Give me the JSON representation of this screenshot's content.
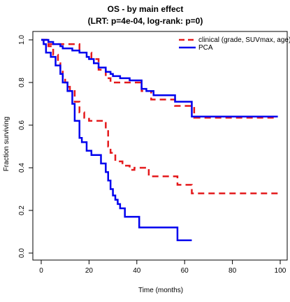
{
  "chart_data": {
    "type": "line",
    "step": true,
    "title": "OS - by main effect",
    "subtitle": "(LRT: p=4e-04,  log-rank: p=0)",
    "xlabel": "Time (months)",
    "ylabel": "Fraction surviving",
    "xlim": [
      0,
      100
    ],
    "ylim": [
      0,
      1
    ],
    "xticks": [
      0,
      20,
      40,
      60,
      80,
      100
    ],
    "yticks": [
      0.0,
      0.2,
      0.4,
      0.6,
      0.8,
      1.0
    ],
    "xtick_labels": [
      "0",
      "20",
      "40",
      "60",
      "80",
      "100"
    ],
    "ytick_labels": [
      "0.0",
      "0.2",
      "0.4",
      "0.6",
      "0.8",
      "1.0"
    ],
    "legend": {
      "placement": "top-right"
    },
    "series": [
      {
        "name": "clinical (grade, SUVmax, age)",
        "group": "high",
        "color": "#e41a1c",
        "style": "dashed",
        "x": [
          0,
          3,
          16,
          21,
          24,
          27,
          29,
          42,
          46,
          56,
          64,
          99
        ],
        "y": [
          1.0,
          0.98,
          0.94,
          0.91,
          0.86,
          0.82,
          0.8,
          0.76,
          0.72,
          0.69,
          0.635,
          0.635
        ]
      },
      {
        "name": "clinical (grade, SUVmax, age)",
        "group": "low",
        "color": "#e41a1c",
        "style": "dashed",
        "x": [
          0,
          3,
          5,
          7,
          8,
          9,
          10,
          11,
          12,
          14,
          16,
          18,
          20,
          27,
          28,
          29,
          31,
          34,
          37,
          39,
          45,
          57,
          63,
          99
        ],
        "y": [
          1.0,
          0.97,
          0.93,
          0.89,
          0.86,
          0.83,
          0.8,
          0.78,
          0.76,
          0.71,
          0.66,
          0.635,
          0.62,
          0.58,
          0.5,
          0.47,
          0.43,
          0.41,
          0.39,
          0.4,
          0.36,
          0.32,
          0.28,
          0.28
        ]
      },
      {
        "name": "PCA",
        "group": "high",
        "color": "#0000ee",
        "style": "solid",
        "x": [
          0,
          3,
          5,
          8,
          9,
          13,
          16,
          19,
          20,
          22,
          24,
          27,
          29,
          30,
          33,
          34,
          37,
          42,
          44,
          47,
          56,
          63,
          99
        ],
        "y": [
          1.0,
          0.99,
          0.98,
          0.97,
          0.96,
          0.95,
          0.94,
          0.92,
          0.91,
          0.89,
          0.87,
          0.85,
          0.84,
          0.83,
          0.82,
          0.82,
          0.81,
          0.77,
          0.76,
          0.74,
          0.71,
          0.64,
          0.64
        ]
      },
      {
        "name": "PCA",
        "group": "low",
        "color": "#0000ee",
        "style": "solid",
        "x": [
          0,
          1,
          2,
          4,
          6,
          8,
          9,
          11,
          13,
          14,
          16,
          17,
          19,
          21,
          25,
          27,
          28,
          29,
          30,
          31,
          32,
          33,
          35,
          41,
          48,
          57,
          63
        ],
        "y": [
          1.0,
          0.98,
          0.94,
          0.92,
          0.88,
          0.84,
          0.8,
          0.76,
          0.7,
          0.62,
          0.54,
          0.52,
          0.48,
          0.46,
          0.42,
          0.38,
          0.34,
          0.3,
          0.27,
          0.25,
          0.23,
          0.21,
          0.17,
          0.12,
          0.12,
          0.06,
          0.06
        ]
      }
    ]
  }
}
